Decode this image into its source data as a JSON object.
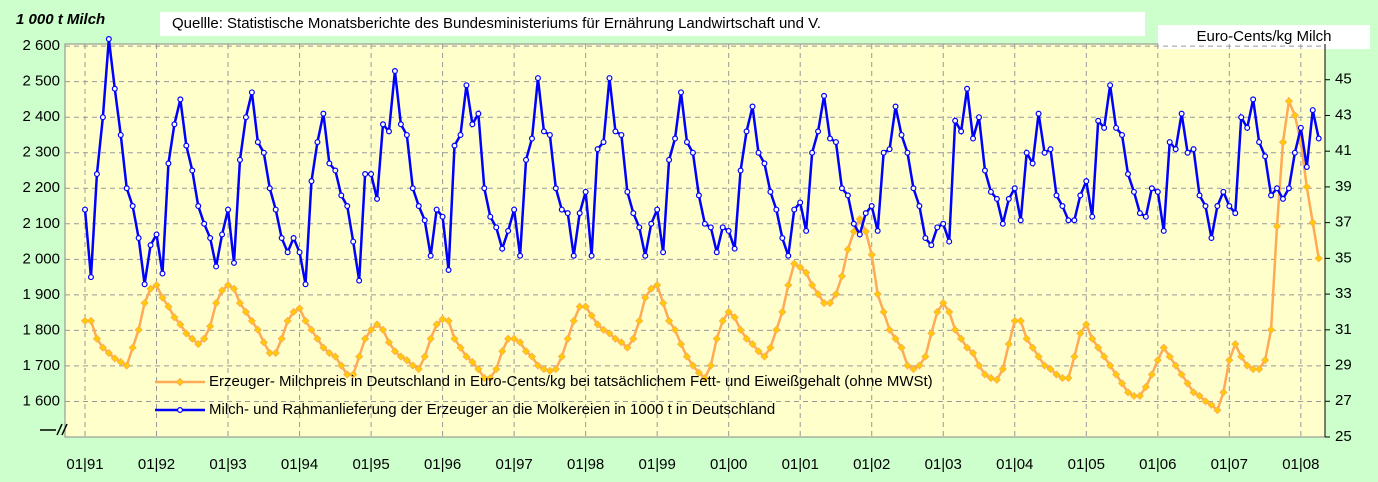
{
  "chart_data": {
    "type": "line",
    "annotation": "Quellle: Statistische Monatsberichte des Bundesministeriums für Ernährung Landwirtschaft und V.",
    "y_label": "1 000 t Milch",
    "y2_label": "Euro-Cents/kg Milch",
    "categories": [
      "01|91",
      null,
      null,
      null,
      null,
      null,
      null,
      null,
      null,
      null,
      null,
      null,
      "01|92",
      null,
      null,
      null,
      null,
      null,
      null,
      null,
      null,
      null,
      null,
      null,
      "01|93",
      null,
      null,
      null,
      null,
      null,
      null,
      null,
      null,
      null,
      null,
      null,
      "01|94",
      null,
      null,
      null,
      null,
      null,
      null,
      null,
      null,
      null,
      null,
      null,
      "01|95",
      null,
      null,
      null,
      null,
      null,
      null,
      null,
      null,
      null,
      null,
      null,
      "01|96",
      null,
      null,
      null,
      null,
      null,
      null,
      null,
      null,
      null,
      null,
      null,
      "01|97",
      null,
      null,
      null,
      null,
      null,
      null,
      null,
      null,
      null,
      null,
      null,
      "01|98",
      null,
      null,
      null,
      null,
      null,
      null,
      null,
      null,
      null,
      null,
      null,
      "01|99",
      null,
      null,
      null,
      null,
      null,
      null,
      null,
      null,
      null,
      null,
      null,
      "01|00",
      null,
      null,
      null,
      null,
      null,
      null,
      null,
      null,
      null,
      null,
      null,
      "01|01",
      null,
      null,
      null,
      null,
      null,
      null,
      null,
      null,
      null,
      null,
      null,
      "01|02",
      null,
      null,
      null,
      null,
      null,
      null,
      null,
      null,
      null,
      null,
      null,
      "01|03",
      null,
      null,
      null,
      null,
      null,
      null,
      null,
      null,
      null,
      null,
      null,
      "01|04",
      null,
      null,
      null,
      null,
      null,
      null,
      null,
      null,
      null,
      null,
      null,
      "01|05",
      null,
      null,
      null,
      null,
      null,
      null,
      null,
      null,
      null,
      null,
      null,
      "01|06",
      null,
      null,
      null,
      null,
      null,
      null,
      null,
      null,
      null,
      null,
      null,
      "01|07",
      null,
      null,
      null,
      null,
      null,
      null,
      null,
      null,
      null,
      null,
      null,
      "01|08",
      null,
      null,
      null
    ],
    "series": [
      {
        "name": "Erzeuger- Milchpreis in Deutschland in Euro-Cents/kg bei tatsächlichem Fett- und Eiweißgehalt (ohne MWSt)",
        "color": "#ffaa55",
        "marker_color": "#ffcc00",
        "axis": "y2",
        "values": [
          31.5,
          31.5,
          30.5,
          30,
          29.7,
          29.4,
          29.2,
          29,
          30,
          31,
          32.5,
          33.3,
          33.5,
          32.8,
          32.3,
          31.7,
          31.3,
          30.8,
          30.5,
          30.2,
          30.5,
          31.2,
          32.5,
          33.2,
          33.5,
          33.3,
          32.5,
          32,
          31.5,
          31,
          30.3,
          29.7,
          29.7,
          30.5,
          31.5,
          32,
          32.2,
          31.5,
          31,
          30.5,
          30,
          29.7,
          29.5,
          29,
          28.5,
          28.5,
          29.5,
          30.5,
          31,
          31.3,
          31,
          30.3,
          29.8,
          29.5,
          29.3,
          29,
          28.8,
          29.5,
          30.5,
          31.3,
          31.6,
          31.5,
          30.5,
          30,
          29.5,
          29.2,
          28.8,
          28.3,
          28.3,
          28.8,
          29.8,
          30.5,
          30.5,
          30.3,
          29.8,
          29.5,
          29,
          28.8,
          28.7,
          28.8,
          29.5,
          30.5,
          31.5,
          32.3,
          32.3,
          31.8,
          31.3,
          31,
          30.8,
          30.5,
          30.3,
          30,
          30.5,
          31.5,
          32.8,
          33.3,
          33.5,
          32.5,
          31.5,
          31,
          30.2,
          29.5,
          29,
          28.6,
          28.3,
          29,
          30.5,
          31.5,
          32,
          31.7,
          31,
          30.5,
          30.2,
          29.8,
          29.5,
          30,
          31,
          32,
          33.5,
          34.7,
          34.5,
          34.2,
          33.5,
          33,
          32.5,
          32.5,
          33,
          34,
          35.5,
          36.5,
          37.2,
          36.5,
          35.2,
          33,
          32,
          31,
          30.5,
          30,
          29,
          28.8,
          29,
          29.5,
          30.8,
          32,
          32.5,
          32,
          31,
          30.5,
          30,
          29.7,
          29,
          28.5,
          28.3,
          28.2,
          28.8,
          30.2,
          31.5,
          31.5,
          30.5,
          30,
          29.5,
          29,
          28.8,
          28.5,
          28.3,
          28.3,
          29.5,
          30.8,
          31.3,
          30.5,
          30,
          29.5,
          29,
          28.5,
          28,
          27.5,
          27.3,
          27.3,
          27.8,
          28.5,
          29.3,
          30,
          29.5,
          29,
          28.5,
          28,
          27.5,
          27.3,
          27,
          26.8,
          26.5,
          27.5,
          29.3,
          30.2,
          29.5,
          29,
          28.8,
          28.8,
          29.3,
          31,
          36.8,
          41.5,
          43.8,
          43,
          41.5,
          39,
          37,
          35
        ]
      },
      {
        "name": "Milch- und Rahmanlieferung der Erzeuger an die Molkereien in 1000 t in Deutschland",
        "color": "#0000ff",
        "marker_color": "#ffffff",
        "values": [
          2140,
          1950,
          2240,
          2400,
          2620,
          2480,
          2350,
          2200,
          2150,
          2060,
          1930,
          2040,
          2070,
          1960,
          2270,
          2380,
          2450,
          2320,
          2250,
          2150,
          2100,
          2060,
          1980,
          2070,
          2140,
          1990,
          2280,
          2400,
          2470,
          2330,
          2300,
          2200,
          2140,
          2060,
          2020,
          2060,
          2020,
          1930,
          2220,
          2330,
          2410,
          2270,
          2250,
          2180,
          2150,
          2050,
          1940,
          2240,
          2240,
          2170,
          2380,
          2360,
          2530,
          2380,
          2350,
          2200,
          2150,
          2110,
          2010,
          2140,
          2120,
          1970,
          2320,
          2350,
          2490,
          2380,
          2410,
          2200,
          2120,
          2090,
          2030,
          2080,
          2140,
          2010,
          2280,
          2340,
          2510,
          2360,
          2350,
          2200,
          2140,
          2130,
          2010,
          2130,
          2190,
          2010,
          2310,
          2330,
          2510,
          2360,
          2350,
          2190,
          2130,
          2090,
          2010,
          2100,
          2140,
          2020,
          2280,
          2340,
          2470,
          2330,
          2300,
          2180,
          2100,
          2090,
          2020,
          2090,
          2080,
          2030,
          2250,
          2360,
          2430,
          2300,
          2270,
          2190,
          2140,
          2060,
          2010,
          2140,
          2160,
          2080,
          2300,
          2360,
          2460,
          2340,
          2330,
          2200,
          2180,
          2100,
          2070,
          2130,
          2150,
          2080,
          2300,
          2310,
          2430,
          2350,
          2300,
          2200,
          2150,
          2060,
          2040,
          2090,
          2100,
          2050,
          2390,
          2360,
          2480,
          2340,
          2400,
          2250,
          2190,
          2170,
          2100,
          2170,
          2200,
          2110,
          2300,
          2270,
          2410,
          2300,
          2310,
          2180,
          2150,
          2110,
          2110,
          2180,
          2220,
          2120,
          2390,
          2370,
          2490,
          2370,
          2350,
          2240,
          2190,
          2130,
          2120,
          2200,
          2190,
          2080,
          2330,
          2310,
          2410,
          2300,
          2310,
          2180,
          2150,
          2060,
          2150,
          2190,
          2150,
          2130,
          2400,
          2370,
          2450,
          2330,
          2290,
          2180,
          2200,
          2170,
          2200,
          2300,
          2370,
          2260,
          2420,
          2340
        ]
      }
    ],
    "ylim": [
      1500,
      2606
    ],
    "yticks": [
      {
        "value": 1600,
        "label": "1 600"
      },
      {
        "value": 1700,
        "label": "1 700"
      },
      {
        "value": 1800,
        "label": "1 800"
      },
      {
        "value": 1900,
        "label": "1 900"
      },
      {
        "value": 2000,
        "label": "2 000"
      },
      {
        "value": 2100,
        "label": "2 100"
      },
      {
        "value": 2200,
        "label": "2 200"
      },
      {
        "value": 2300,
        "label": "2 300"
      },
      {
        "value": 2400,
        "label": "2 400"
      },
      {
        "value": 2500,
        "label": "2 500"
      },
      {
        "value": 2600,
        "label": "2 600"
      }
    ],
    "y2lim": [
      25,
      47
    ],
    "y2ticks": [
      25,
      27,
      29,
      31,
      33,
      35,
      37,
      39,
      41,
      43,
      45
    ],
    "grid": true,
    "legend": "lower left",
    "plot_background": "#ffffcc"
  }
}
